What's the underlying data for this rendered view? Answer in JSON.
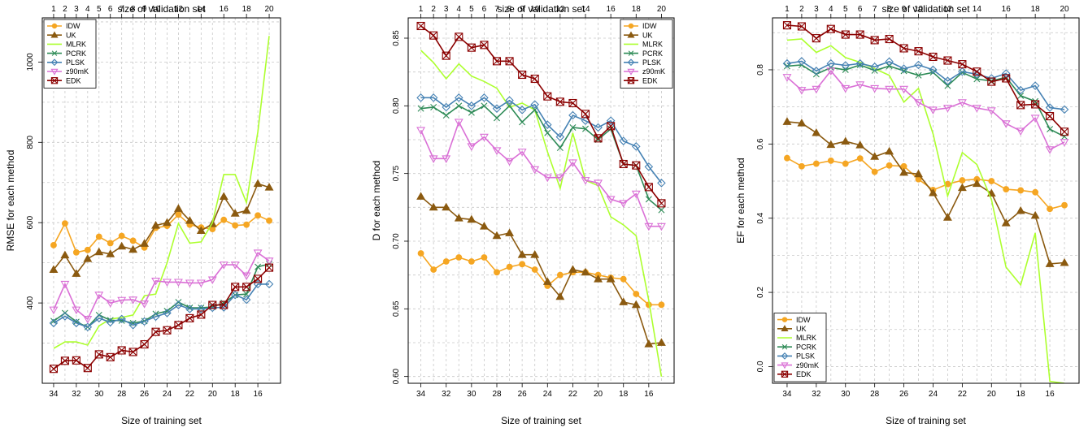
{
  "figure": {
    "secondary_axis_label": "size of validation set",
    "xlabel": "Size of training set"
  },
  "chart_data": [
    {
      "type": "line",
      "title": "",
      "xlabel": "Size of training set",
      "ylabel": "RMSE for each method",
      "top_xlabel": "size of validation set",
      "x": [
        34,
        33,
        32,
        31,
        30,
        29,
        28,
        27,
        26,
        25,
        24,
        23,
        22,
        21,
        20,
        19,
        18,
        17,
        16,
        15
      ],
      "x_reversed": true,
      "xlim": [
        35,
        14
      ],
      "x_ticks": [
        34,
        32,
        30,
        28,
        26,
        24,
        22,
        20,
        18,
        16
      ],
      "top_x": [
        1,
        2,
        3,
        4,
        5,
        6,
        7,
        8,
        9,
        10,
        11,
        12,
        13,
        14,
        15,
        16,
        17,
        18,
        19,
        20
      ],
      "top_ticks": [
        1,
        2,
        3,
        4,
        5,
        6,
        7,
        8,
        9,
        10,
        12,
        14,
        16,
        18,
        20
      ],
      "ylim": [
        200,
        1110
      ],
      "y_ticks": [
        400,
        600,
        800,
        1000
      ],
      "grid": true,
      "legend_position": "top-left",
      "series": [
        {
          "name": "IDW",
          "color": "#F5A623",
          "marker": "circle",
          "values": [
            544,
            598,
            526,
            532,
            565,
            549,
            567,
            555,
            538,
            587,
            592,
            620,
            595,
            588,
            584,
            607,
            593,
            595,
            618,
            605
          ]
        },
        {
          "name": "UK",
          "color": "#8B5A10",
          "marker": "triangle-up",
          "values": [
            483,
            519,
            473,
            510,
            527,
            522,
            541,
            533,
            548,
            593,
            600,
            635,
            605,
            580,
            597,
            665,
            623,
            630,
            697,
            688
          ]
        },
        {
          "name": "MLRK",
          "color": "#ADFF2F",
          "marker": "none",
          "values": [
            287,
            303,
            303,
            295,
            343,
            360,
            364,
            370,
            418,
            422,
            500,
            598,
            549,
            552,
            600,
            720,
            720,
            650,
            826,
            1065
          ]
        },
        {
          "name": "PCRK",
          "color": "#2E8B57",
          "marker": "cross",
          "values": [
            355,
            375,
            353,
            340,
            370,
            357,
            356,
            350,
            355,
            373,
            380,
            402,
            388,
            388,
            390,
            400,
            420,
            422,
            490,
            497
          ]
        },
        {
          "name": "PLSK",
          "color": "#4682B4",
          "marker": "diamond",
          "values": [
            350,
            367,
            350,
            340,
            362,
            352,
            360,
            345,
            354,
            366,
            375,
            395,
            385,
            385,
            388,
            389,
            420,
            408,
            447,
            447
          ]
        },
        {
          "name": "z90mK",
          "color": "#DA70D6",
          "marker": "triangle-down",
          "values": [
            383,
            447,
            383,
            360,
            420,
            400,
            407,
            408,
            398,
            455,
            452,
            452,
            450,
            450,
            458,
            495,
            495,
            468,
            525,
            505
          ]
        },
        {
          "name": "EDK",
          "color": "#8B0000",
          "marker": "square-x",
          "values": [
            236,
            256,
            257,
            238,
            272,
            265,
            282,
            278,
            297,
            328,
            332,
            345,
            362,
            371,
            395,
            395,
            440,
            440,
            460,
            488
          ]
        }
      ]
    },
    {
      "type": "line",
      "title": "",
      "xlabel": "Size of training set",
      "ylabel": "D for each method",
      "top_xlabel": "size of validation set",
      "x": [
        34,
        33,
        32,
        31,
        30,
        29,
        28,
        27,
        26,
        25,
        24,
        23,
        22,
        21,
        20,
        19,
        18,
        17,
        16,
        15
      ],
      "x_reversed": true,
      "xlim": [
        35,
        14
      ],
      "x_ticks": [
        34,
        32,
        30,
        28,
        26,
        24,
        22,
        20,
        18,
        16
      ],
      "top_x": [
        1,
        2,
        3,
        4,
        5,
        6,
        7,
        8,
        9,
        10,
        11,
        12,
        13,
        14,
        15,
        16,
        17,
        18,
        19,
        20
      ],
      "top_ticks": [
        1,
        2,
        3,
        4,
        5,
        6,
        7,
        8,
        9,
        10,
        12,
        14,
        16,
        18,
        20
      ],
      "ylim": [
        0.595,
        0.865
      ],
      "y_ticks": [
        0.6,
        0.65,
        0.7,
        0.75,
        0.8,
        0.85
      ],
      "grid": true,
      "legend_position": "top-right",
      "series": [
        {
          "name": "IDW",
          "color": "#F5A623",
          "marker": "circle",
          "values": [
            0.691,
            0.679,
            0.685,
            0.688,
            0.685,
            0.688,
            0.677,
            0.681,
            0.683,
            0.679,
            0.667,
            0.675,
            0.677,
            0.677,
            0.675,
            0.673,
            0.672,
            0.661,
            0.653,
            0.653
          ]
        },
        {
          "name": "UK",
          "color": "#8B5A10",
          "marker": "triangle-up",
          "values": [
            0.733,
            0.725,
            0.725,
            0.717,
            0.716,
            0.711,
            0.704,
            0.706,
            0.69,
            0.69,
            0.67,
            0.659,
            0.679,
            0.677,
            0.672,
            0.672,
            0.655,
            0.653,
            0.624,
            0.625
          ]
        },
        {
          "name": "MLRK",
          "color": "#ADFF2F",
          "marker": "none",
          "values": [
            0.841,
            0.832,
            0.82,
            0.831,
            0.822,
            0.818,
            0.813,
            0.799,
            0.802,
            0.797,
            0.766,
            0.739,
            0.78,
            0.745,
            0.741,
            0.718,
            0.712,
            0.704,
            0.656,
            0.6
          ]
        },
        {
          "name": "PCRK",
          "color": "#2E8B57",
          "marker": "cross",
          "values": [
            0.798,
            0.799,
            0.793,
            0.8,
            0.795,
            0.8,
            0.791,
            0.8,
            0.788,
            0.797,
            0.78,
            0.769,
            0.784,
            0.783,
            0.775,
            0.783,
            0.757,
            0.756,
            0.731,
            0.723
          ]
        },
        {
          "name": "PLSK",
          "color": "#4682B4",
          "marker": "diamond",
          "values": [
            0.806,
            0.806,
            0.799,
            0.806,
            0.8,
            0.806,
            0.798,
            0.804,
            0.797,
            0.801,
            0.786,
            0.777,
            0.793,
            0.789,
            0.784,
            0.789,
            0.774,
            0.77,
            0.755,
            0.743
          ]
        },
        {
          "name": "z90mK",
          "color": "#DA70D6",
          "marker": "triangle-down",
          "values": [
            0.782,
            0.761,
            0.761,
            0.788,
            0.77,
            0.777,
            0.767,
            0.759,
            0.766,
            0.753,
            0.747,
            0.747,
            0.758,
            0.745,
            0.743,
            0.731,
            0.728,
            0.735,
            0.711,
            0.711
          ]
        },
        {
          "name": "EDK",
          "color": "#8B0000",
          "marker": "square-x",
          "values": [
            0.859,
            0.852,
            0.837,
            0.851,
            0.843,
            0.845,
            0.833,
            0.833,
            0.823,
            0.82,
            0.807,
            0.803,
            0.802,
            0.794,
            0.776,
            0.785,
            0.757,
            0.756,
            0.74,
            0.728
          ]
        }
      ]
    },
    {
      "type": "line",
      "title": "",
      "xlabel": "Size of training set",
      "ylabel": "EF for each method",
      "top_xlabel": "size of validation set",
      "x": [
        34,
        33,
        32,
        31,
        30,
        29,
        28,
        27,
        26,
        25,
        24,
        23,
        22,
        21,
        20,
        19,
        18,
        17,
        16,
        15
      ],
      "x_reversed": true,
      "xlim": [
        35,
        14
      ],
      "x_ticks": [
        34,
        32,
        30,
        28,
        26,
        24,
        22,
        20,
        18,
        16
      ],
      "top_x": [
        1,
        2,
        3,
        4,
        5,
        6,
        7,
        8,
        9,
        10,
        11,
        12,
        13,
        14,
        15,
        16,
        17,
        18,
        19,
        20
      ],
      "top_ticks": [
        1,
        2,
        3,
        4,
        5,
        6,
        7,
        8,
        9,
        10,
        12,
        14,
        16,
        18,
        20
      ],
      "ylim": [
        -0.045,
        0.94
      ],
      "y_ticks": [
        0.0,
        0.2,
        0.4,
        0.6,
        0.8
      ],
      "grid": true,
      "legend_position": "bottom-left",
      "series": [
        {
          "name": "IDW",
          "color": "#F5A623",
          "marker": "circle",
          "values": [
            0.562,
            0.54,
            0.547,
            0.555,
            0.547,
            0.561,
            0.525,
            0.542,
            0.54,
            0.505,
            0.476,
            0.492,
            0.502,
            0.505,
            0.5,
            0.478,
            0.475,
            0.47,
            0.425,
            0.435
          ]
        },
        {
          "name": "UK",
          "color": "#8B5A10",
          "marker": "triangle-up",
          "values": [
            0.66,
            0.656,
            0.63,
            0.598,
            0.607,
            0.597,
            0.566,
            0.58,
            0.523,
            0.519,
            0.468,
            0.402,
            0.482,
            0.493,
            0.467,
            0.387,
            0.42,
            0.407,
            0.277,
            0.28
          ]
        },
        {
          "name": "MLRK",
          "color": "#ADFF2F",
          "marker": "none",
          "values": [
            0.88,
            0.883,
            0.847,
            0.865,
            0.833,
            0.82,
            0.803,
            0.785,
            0.713,
            0.75,
            0.627,
            0.46,
            0.577,
            0.545,
            0.45,
            0.268,
            0.22,
            0.36,
            -0.04,
            -0.045
          ]
        },
        {
          "name": "PCRK",
          "color": "#2E8B57",
          "marker": "cross",
          "values": [
            0.81,
            0.813,
            0.788,
            0.806,
            0.8,
            0.813,
            0.798,
            0.81,
            0.797,
            0.785,
            0.793,
            0.757,
            0.793,
            0.775,
            0.77,
            0.78,
            0.73,
            0.715,
            0.64,
            0.62
          ]
        },
        {
          "name": "PLSK",
          "color": "#4682B4",
          "marker": "diamond",
          "values": [
            0.817,
            0.823,
            0.797,
            0.817,
            0.812,
            0.817,
            0.808,
            0.822,
            0.803,
            0.813,
            0.8,
            0.77,
            0.795,
            0.788,
            0.777,
            0.79,
            0.745,
            0.757,
            0.698,
            0.693
          ]
        },
        {
          "name": "z90mK",
          "color": "#DA70D6",
          "marker": "triangle-down",
          "values": [
            0.78,
            0.745,
            0.748,
            0.797,
            0.75,
            0.76,
            0.75,
            0.748,
            0.748,
            0.712,
            0.692,
            0.697,
            0.712,
            0.697,
            0.69,
            0.655,
            0.635,
            0.67,
            0.585,
            0.605
          ]
        },
        {
          "name": "EDK",
          "color": "#8B0000",
          "marker": "square-x",
          "values": [
            0.92,
            0.917,
            0.885,
            0.91,
            0.895,
            0.895,
            0.88,
            0.883,
            0.858,
            0.85,
            0.835,
            0.825,
            0.815,
            0.795,
            0.768,
            0.777,
            0.705,
            0.707,
            0.675,
            0.633
          ]
        }
      ]
    }
  ]
}
